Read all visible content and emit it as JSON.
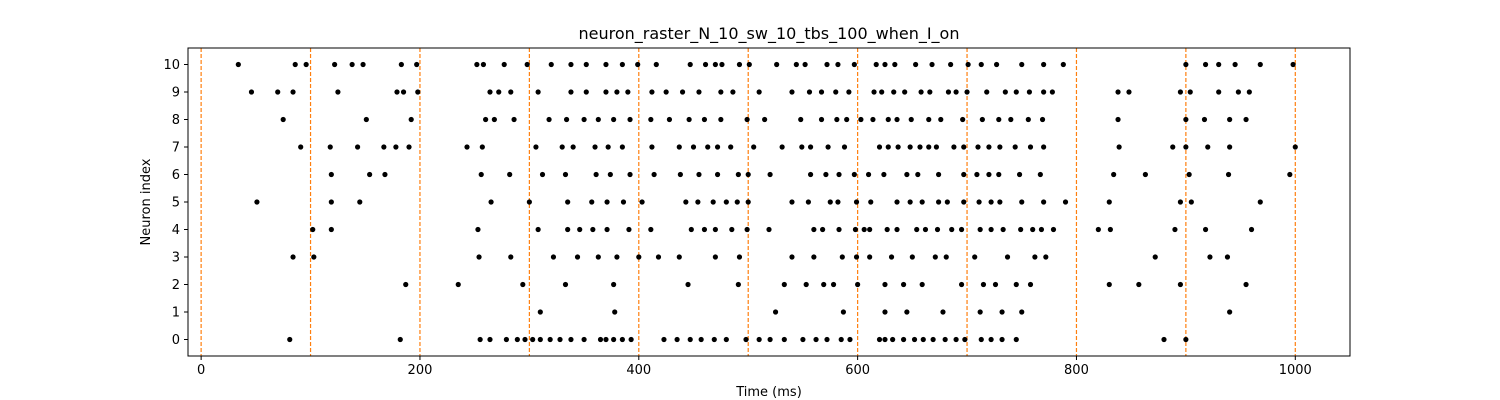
{
  "chart_data": {
    "type": "scatter",
    "title": "neuron_raster_N_10_sw_10_tbs_100_when_I_on",
    "xlabel": "Time (ms)",
    "ylabel": "Neuron index",
    "xlim": [
      -12,
      1050
    ],
    "ylim": [
      -0.6,
      10.6
    ],
    "xticks": [
      0,
      200,
      400,
      600,
      800,
      1000
    ],
    "yticks": [
      0,
      1,
      2,
      3,
      4,
      5,
      6,
      7,
      8,
      9,
      10
    ],
    "vlines": [
      0,
      100,
      200,
      300,
      400,
      500,
      600,
      700,
      800,
      900,
      1000
    ],
    "colors": {
      "spike": "#000000",
      "vline": "#ff7f0e",
      "axis": "#000000"
    },
    "spikes": [
      {
        "neuron": 10,
        "times": [
          34,
          86,
          96,
          122,
          138,
          148,
          183,
          197,
          252,
          258,
          277,
          298,
          320,
          338,
          352,
          370,
          385,
          399,
          416,
          447,
          461,
          470,
          476,
          492,
          501,
          526,
          544,
          552,
          572,
          582,
          597,
          617,
          625,
          634,
          653,
          668,
          685,
          701,
          713,
          727,
          750,
          770,
          788,
          900,
          918,
          930,
          945,
          968,
          998
        ]
      },
      {
        "neuron": 9,
        "times": [
          46,
          70,
          84,
          125,
          179,
          185,
          198,
          264,
          272,
          283,
          308,
          338,
          352,
          370,
          380,
          390,
          412,
          425,
          440,
          455,
          475,
          486,
          510,
          540,
          556,
          567,
          580,
          592,
          615,
          622,
          633,
          643,
          658,
          666,
          683,
          690,
          700,
          718,
          735,
          745,
          757,
          770,
          778,
          838,
          848,
          895,
          904,
          930,
          948,
          958
        ]
      },
      {
        "neuron": 8,
        "times": [
          75,
          151,
          192,
          260,
          268,
          286,
          318,
          334,
          350,
          363,
          377,
          392,
          411,
          428,
          446,
          460,
          475,
          499,
          515,
          548,
          567,
          581,
          590,
          603,
          614,
          628,
          636,
          649,
          665,
          676,
          696,
          714,
          729,
          740,
          756,
          769,
          838,
          900,
          917,
          940,
          955
        ]
      },
      {
        "neuron": 7,
        "times": [
          91,
          118,
          143,
          167,
          178,
          190,
          243,
          257,
          306,
          330,
          340,
          360,
          372,
          385,
          412,
          437,
          450,
          463,
          472,
          484,
          505,
          531,
          549,
          557,
          573,
          588,
          620,
          628,
          637,
          648,
          657,
          665,
          672,
          688,
          697,
          710,
          720,
          730,
          744,
          758,
          770,
          839,
          888,
          900,
          920,
          940,
          1000
        ]
      },
      {
        "neuron": 6,
        "times": [
          119,
          154,
          168,
          256,
          282,
          312,
          333,
          361,
          374,
          392,
          414,
          438,
          455,
          472,
          491,
          500,
          520,
          557,
          571,
          583,
          597,
          610,
          624,
          645,
          655,
          674,
          697,
          709,
          720,
          729,
          748,
          767,
          834,
          863,
          903,
          939,
          995
        ]
      },
      {
        "neuron": 5,
        "times": [
          51,
          119,
          145,
          265,
          300,
          335,
          357,
          371,
          386,
          403,
          443,
          454,
          468,
          480,
          490,
          500,
          540,
          555,
          575,
          582,
          599,
          612,
          636,
          648,
          659,
          674,
          682,
          697,
          711,
          722,
          730,
          750,
          770,
          790,
          830,
          895,
          905,
          968
        ]
      },
      {
        "neuron": 4,
        "times": [
          102,
          119,
          253,
          308,
          335,
          346,
          358,
          371,
          391,
          411,
          448,
          460,
          470,
          485,
          499,
          519,
          560,
          568,
          583,
          598,
          606,
          611,
          627,
          636,
          654,
          662,
          673,
          686,
          695,
          712,
          722,
          733,
          749,
          760,
          768,
          779,
          820,
          831,
          890,
          918,
          960
        ]
      },
      {
        "neuron": 3,
        "times": [
          84,
          103,
          254,
          283,
          322,
          344,
          363,
          380,
          400,
          418,
          437,
          470,
          492,
          540,
          560,
          586,
          599,
          611,
          631,
          650,
          671,
          681,
          707,
          737,
          762,
          772,
          872,
          922,
          938
        ]
      },
      {
        "neuron": 2,
        "times": [
          235,
          187,
          294,
          333,
          377,
          445,
          491,
          533,
          553,
          569,
          578,
          600,
          625,
          642,
          659,
          695,
          715,
          726,
          745,
          758,
          830,
          857,
          895,
          955
        ]
      },
      {
        "neuron": 1,
        "times": [
          310,
          378,
          525,
          587,
          625,
          645,
          678,
          712,
          732,
          750,
          940
        ]
      },
      {
        "neuron": 0,
        "times": [
          81,
          182,
          255,
          264,
          279,
          289,
          296,
          303,
          310,
          319,
          328,
          338,
          350,
          365,
          370,
          377,
          385,
          393,
          423,
          435,
          447,
          457,
          469,
          480,
          498,
          510,
          520,
          533,
          550,
          562,
          572,
          585,
          593,
          620,
          625,
          632,
          642,
          652,
          660,
          669,
          680,
          690,
          698,
          713,
          722,
          732,
          745,
          880,
          900
        ]
      }
    ]
  }
}
